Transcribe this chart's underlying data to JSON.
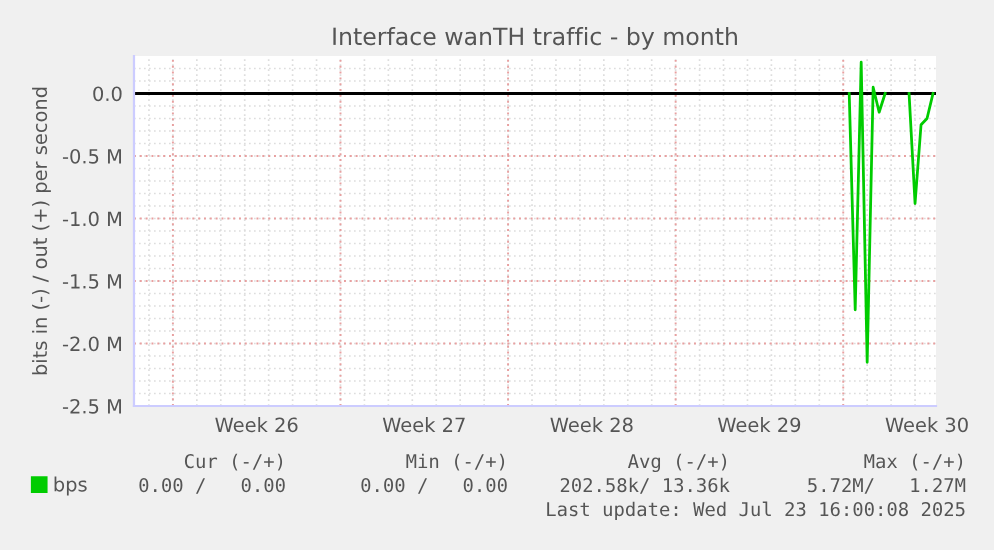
{
  "chart_data": {
    "type": "line",
    "title": "Interface wanTH traffic - by month",
    "ylabel": "bits in (-) / out (+) per second",
    "categories": [
      null,
      null,
      null,
      null,
      null,
      null,
      null,
      null,
      null,
      null,
      null,
      null,
      null,
      null,
      null,
      null,
      null,
      null,
      null,
      null,
      "Week 26",
      null,
      null,
      null,
      null,
      null,
      null,
      null,
      null,
      null,
      null,
      null,
      null,
      null,
      null,
      null,
      null,
      null,
      null,
      null,
      null,
      null,
      null,
      null,
      null,
      null,
      null,
      null,
      "Week 27",
      null,
      null,
      null,
      null,
      null,
      null,
      null,
      null,
      null,
      null,
      null,
      null,
      null,
      null,
      null,
      null,
      null,
      null,
      null,
      null,
      null,
      null,
      null,
      null,
      null,
      null,
      null,
      "Week 28",
      null,
      null,
      null,
      null,
      null,
      null,
      null,
      null,
      null,
      null,
      null,
      null,
      null,
      null,
      null,
      null,
      null,
      null,
      null,
      null,
      null,
      null,
      null,
      null,
      null,
      null,
      null,
      "Week 29",
      null,
      null,
      null,
      null,
      null,
      null,
      null,
      null,
      null,
      null,
      null,
      null,
      null,
      null,
      null,
      null,
      null,
      null,
      null,
      null,
      null,
      null,
      null,
      null,
      null,
      null,
      null,
      "Week 30",
      null
    ],
    "ylim": [
      -2.5,
      0.3
    ],
    "yticks": [
      {
        "value": -2.5,
        "label": "-2.5 M"
      },
      {
        "value": -2.0,
        "label": "-2.0 M"
      },
      {
        "value": -1.5,
        "label": "-1.5 M"
      },
      {
        "value": -1.0,
        "label": "-1.0 M"
      },
      {
        "value": -0.5,
        "label": "-0.5 M"
      },
      {
        "value": 0,
        "label": "0.0"
      }
    ],
    "grid": true,
    "legend": "bottom",
    "ref_lines": [
      {
        "axis": "y",
        "value": 0,
        "color": "#000000"
      }
    ],
    "series": [
      {
        "name": "bps",
        "color": "#00cc00",
        "values": [
          null,
          null,
          null,
          null,
          null,
          null,
          null,
          null,
          null,
          null,
          null,
          null,
          null,
          null,
          null,
          null,
          null,
          null,
          null,
          null,
          null,
          null,
          null,
          null,
          null,
          null,
          null,
          null,
          null,
          null,
          null,
          null,
          null,
          null,
          null,
          null,
          null,
          null,
          null,
          null,
          null,
          null,
          null,
          null,
          null,
          null,
          null,
          null,
          null,
          null,
          null,
          null,
          null,
          null,
          null,
          null,
          null,
          null,
          null,
          null,
          null,
          null,
          null,
          null,
          null,
          null,
          null,
          null,
          null,
          null,
          null,
          null,
          null,
          null,
          null,
          null,
          null,
          null,
          null,
          null,
          null,
          null,
          null,
          null,
          null,
          null,
          null,
          null,
          null,
          null,
          null,
          null,
          null,
          null,
          null,
          null,
          null,
          null,
          null,
          null,
          null,
          null,
          null,
          null,
          null,
          null,
          null,
          null,
          null,
          null,
          null,
          null,
          null,
          null,
          null,
          null,
          null,
          null,
          null,
          0.0,
          -1.73,
          0.25,
          -2.15,
          0.05,
          -0.15,
          0.0,
          null,
          null,
          null,
          0.0,
          -0.88,
          -0.25,
          -0.2,
          0.0
        ]
      }
    ],
    "annotations": [
      "Cur (-/+)",
      "Min (-/+)",
      "Avg (-/+)",
      "Max (-/+)",
      "0.00 /   0.00",
      "0.00 /   0.00",
      "202.58k/ 13.36k",
      "5.72M/   1.27M",
      "Last update: Wed Jul 23 16:00:08 2025"
    ]
  }
}
